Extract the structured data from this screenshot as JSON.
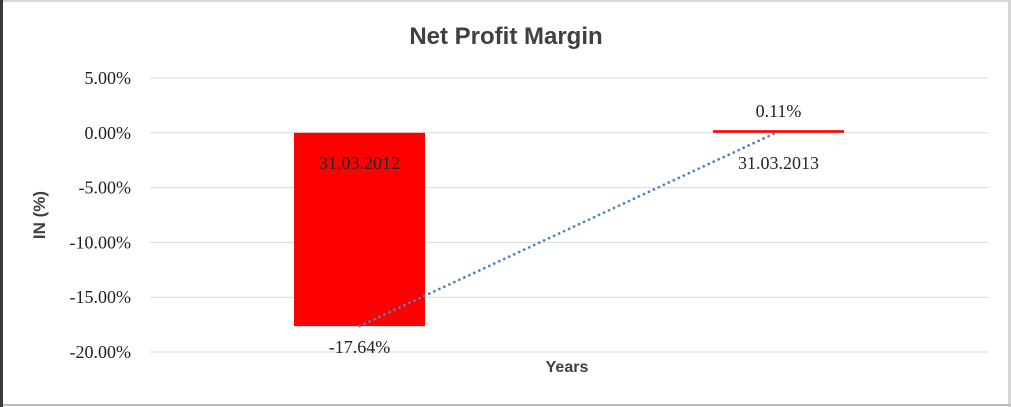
{
  "chart_data": {
    "type": "bar",
    "title": "Net Profit Margin",
    "xlabel": "Years",
    "ylabel": "IN (%)",
    "categories": [
      "31.03.2012",
      "31.03.2013"
    ],
    "values": [
      -17.64,
      0.11
    ],
    "value_labels": [
      "-17.64%",
      "0.11%"
    ],
    "yticks": [
      {
        "value": 5,
        "label": "5.00%"
      },
      {
        "value": 0,
        "label": "0.00%"
      },
      {
        "value": -5,
        "label": "-5.00%"
      },
      {
        "value": -10,
        "label": "-10.00%"
      },
      {
        "value": -15,
        "label": "-15.00%"
      },
      {
        "value": -20,
        "label": "-20.00%"
      }
    ],
    "ylim": [
      -20,
      5
    ],
    "grid": true,
    "legend": "none",
    "trendline": {
      "type": "linear",
      "style": "dotted"
    },
    "colors": {
      "bar": "#ff0000",
      "trendline": "#4f81bd",
      "gridline": "#d9d9d9",
      "title_text": "#404040",
      "axis_text": "#1f1f1f",
      "bar_label_text": "#262626"
    }
  }
}
